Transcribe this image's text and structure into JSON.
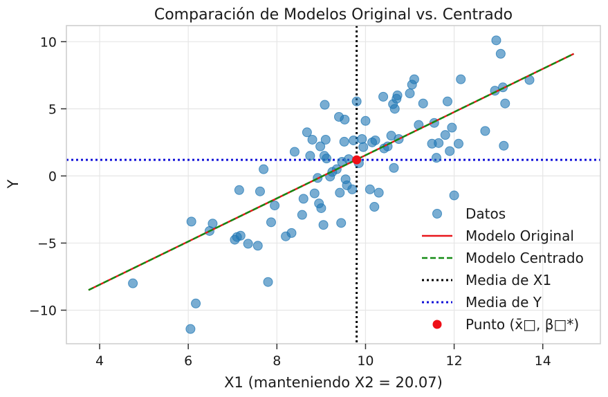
{
  "chart_data": {
    "type": "scatter",
    "title": "Comparación de Modelos Original vs. Centrado",
    "xlabel": "X1 (manteniendo X2 = 20.07)",
    "ylabel": "Y",
    "xlim": [
      3.25,
      15.3
    ],
    "ylim": [
      -12.5,
      11.2
    ],
    "xticks": [
      4,
      6,
      8,
      10,
      12,
      14
    ],
    "yticks": [
      -10,
      -5,
      0,
      5,
      10
    ],
    "xtick_labels": [
      "4",
      "6",
      "8",
      "10",
      "12",
      "14"
    ],
    "ytick_labels": [
      "−10",
      "−5",
      "0",
      "5",
      "10"
    ],
    "grid": true,
    "legend_position": "lower-right",
    "colors": {
      "points": "#1f77b4",
      "original": "#e8161b",
      "centered": "#138a13",
      "mean_x": "#000000",
      "mean_y": "#1010d8",
      "center_point": "#ee0f17"
    },
    "series": [
      {
        "name": "Datos",
        "kind": "scatter",
        "x": [
          4.75,
          6.05,
          6.17,
          6.07,
          6.48,
          6.55,
          7.05,
          7.1,
          7.15,
          7.18,
          7.35,
          7.57,
          7.62,
          7.7,
          7.8,
          7.87,
          7.95,
          8.2,
          8.33,
          8.4,
          8.57,
          8.6,
          8.68,
          8.75,
          8.8,
          8.85,
          8.92,
          8.95,
          8.98,
          9.0,
          9.05,
          9.07,
          9.08,
          9.1,
          9.12,
          9.2,
          9.25,
          9.35,
          9.4,
          9.42,
          9.45,
          9.47,
          9.52,
          9.53,
          9.55,
          9.58,
          9.62,
          9.7,
          9.73,
          9.8,
          9.85,
          9.92,
          9.95,
          10.0,
          10.1,
          10.15,
          10.2,
          10.22,
          10.3,
          10.4,
          10.42,
          10.5,
          10.58,
          10.62,
          10.64,
          10.66,
          10.7,
          10.72,
          10.75,
          11.0,
          11.05,
          11.1,
          11.2,
          11.3,
          11.5,
          11.55,
          11.6,
          11.65,
          11.8,
          11.85,
          11.9,
          11.95,
          12.0,
          12.1,
          12.15,
          12.7,
          12.92,
          12.95,
          13.05,
          13.1,
          13.12,
          13.15,
          13.7
        ],
        "y": [
          -8.0,
          -11.4,
          -9.5,
          -3.4,
          -4.1,
          -3.55,
          -4.75,
          -4.55,
          -1.05,
          -4.45,
          -5.05,
          -5.2,
          -1.15,
          0.5,
          -7.9,
          -3.45,
          -2.2,
          -4.5,
          -4.25,
          1.8,
          -2.9,
          -1.7,
          3.25,
          1.5,
          2.7,
          -1.3,
          -0.15,
          -2.05,
          2.2,
          -2.4,
          -3.65,
          1.5,
          5.3,
          2.7,
          1.3,
          -0.05,
          0.3,
          0.5,
          4.4,
          -1.25,
          -3.5,
          1.05,
          2.55,
          4.2,
          -0.25,
          -0.7,
          1.25,
          -1.0,
          2.65,
          5.55,
          0.95,
          2.75,
          2.15,
          4.1,
          -1.0,
          2.5,
          -2.3,
          2.65,
          -1.25,
          5.9,
          2.05,
          2.2,
          3.0,
          5.35,
          0.6,
          5.0,
          5.75,
          6.0,
          2.75,
          6.15,
          6.8,
          7.2,
          3.8,
          5.4,
          2.4,
          3.95,
          1.35,
          2.45,
          3.05,
          5.55,
          1.85,
          3.6,
          -1.45,
          2.4,
          7.2,
          3.35,
          6.35,
          10.1,
          9.1,
          6.6,
          2.25,
          5.4,
          7.15
        ]
      },
      {
        "name": "Modelo Original",
        "kind": "line",
        "style": "solid",
        "x": [
          3.75,
          14.7
        ],
        "y": [
          -8.5,
          9.1
        ]
      },
      {
        "name": "Modelo Centrado",
        "kind": "line",
        "style": "dashed",
        "x": [
          3.75,
          14.7
        ],
        "y": [
          -8.5,
          9.1
        ]
      },
      {
        "name": "Media de X1",
        "kind": "vline",
        "style": "dotted",
        "x": 9.8
      },
      {
        "name": "Media de Y",
        "kind": "hline",
        "style": "dotted",
        "y": 1.2
      },
      {
        "name": "Punto (x̄□, β□*)",
        "kind": "point",
        "x": 9.8,
        "y": 1.2
      }
    ],
    "legend": [
      {
        "label": "Datos",
        "marker": "circle"
      },
      {
        "label": "Modelo Original",
        "marker": "solid-line"
      },
      {
        "label": "Modelo Centrado",
        "marker": "dashed-line"
      },
      {
        "label": "Media de X1",
        "marker": "dotted-line"
      },
      {
        "label": "Media de Y",
        "marker": "dotted-line"
      },
      {
        "label": "Punto (x̄□, β□*)",
        "marker": "dot"
      }
    ]
  }
}
